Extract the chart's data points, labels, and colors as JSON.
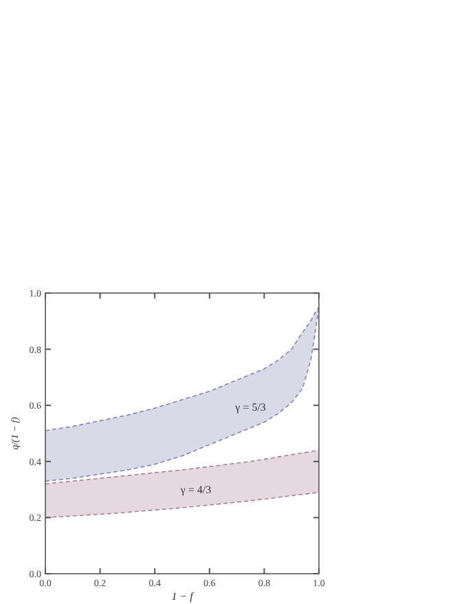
{
  "chart_data": {
    "type": "line",
    "xlabel": "1 − f",
    "ylabel": "q/(1 − f)",
    "xlim": [
      0,
      1
    ],
    "ylim": [
      0,
      1
    ],
    "xticks": [
      {
        "value": 0,
        "label": "0.0"
      },
      0.2,
      0.4,
      0.6,
      0.8,
      {
        "value": 1,
        "label": "1.0"
      }
    ],
    "yticks": [
      {
        "value": 0,
        "label": "0.0"
      },
      0.2,
      0.4,
      0.6,
      0.8,
      {
        "value": 1,
        "label": "1.0"
      }
    ],
    "line_style": "dashed",
    "grid": false,
    "series": [
      {
        "color": "#7f84b0",
        "x": [
          0,
          0.1,
          0.2,
          0.3,
          0.4,
          0.5,
          0.6,
          0.7,
          0.8,
          0.85,
          0.9,
          0.94,
          0.97,
          0.98,
          1.0
        ],
        "values": [
          0.51,
          0.525,
          0.545,
          0.565,
          0.59,
          0.62,
          0.65,
          0.69,
          0.73,
          0.76,
          0.8,
          0.86,
          0.9,
          0.92,
          0.95
        ]
      },
      {
        "color": "#7f84b0",
        "x": [
          0,
          0.1,
          0.2,
          0.3,
          0.4,
          0.5,
          0.6,
          0.7,
          0.8,
          0.85,
          0.9,
          0.94,
          0.97,
          0.98,
          1.0
        ],
        "values": [
          0.33,
          0.34,
          0.355,
          0.37,
          0.39,
          0.42,
          0.46,
          0.5,
          0.54,
          0.57,
          0.61,
          0.66,
          0.76,
          0.82,
          0.95
        ]
      },
      {
        "color": "#a88094",
        "x": [
          0,
          0.25,
          0.5,
          0.75,
          1.0
        ],
        "values": [
          0.32,
          0.345,
          0.37,
          0.4,
          0.44
        ]
      },
      {
        "color": "#a88094",
        "x": [
          0,
          0.25,
          0.5,
          0.75,
          1.0
        ],
        "values": [
          0.2,
          0.215,
          0.235,
          0.26,
          0.29
        ]
      }
    ],
    "annotations": [
      "γ = 5/3",
      "γ = 4/3"
    ]
  }
}
